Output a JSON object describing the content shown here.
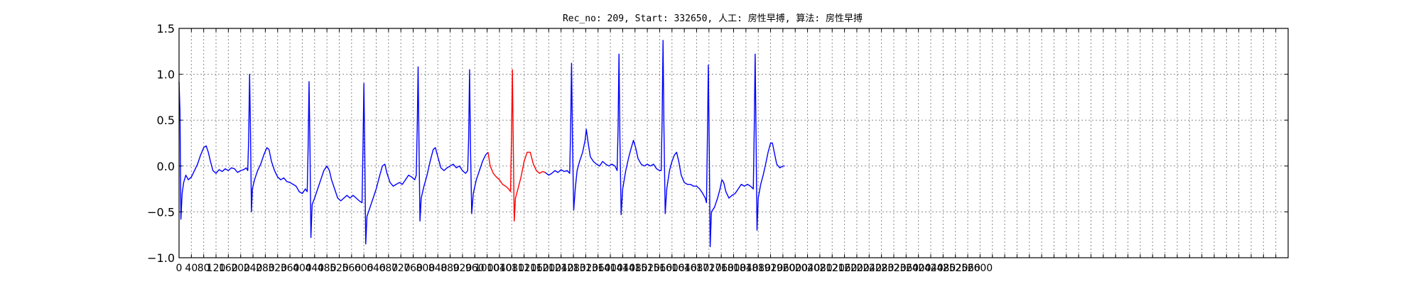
{
  "chart_data": {
    "type": "line",
    "title": "Rec_no: 209, Start: 332650, 人工: 房性早搏, 算法: 房性早搏",
    "xlabel": "",
    "ylabel": "",
    "xlim": [
      0,
      3600
    ],
    "ylim": [
      -1.0,
      1.5
    ],
    "grid": true,
    "y_ticks": [
      -1.0,
      -0.5,
      0.0,
      0.5,
      1.0,
      1.5
    ],
    "y_tick_labels": [
      "−1.0",
      "−0.5",
      "0.0",
      "0.5",
      "1.0",
      "1.5"
    ],
    "x_tick_step": 40,
    "x_ticks_labeled": [
      0,
      40,
      80,
      120,
      160,
      200,
      240,
      280,
      320,
      360,
      400,
      440,
      480,
      520,
      560,
      600,
      640,
      680,
      720,
      760,
      800,
      840,
      880,
      920,
      960,
      1000,
      1040,
      1080,
      1120,
      1160,
      1200,
      1240,
      1280,
      1320,
      1360,
      1400,
      1440,
      1480,
      1520,
      1560,
      1600,
      1640,
      1680,
      1720,
      1760,
      1800,
      1840,
      1880,
      1920,
      1960,
      2000,
      2040,
      2080,
      2120,
      2160,
      2200,
      2240,
      2280,
      2320,
      2360,
      2400,
      2440,
      2480,
      2520,
      2560,
      2600
    ],
    "series": [
      {
        "color": "#0000ff",
        "points": [
          [
            0,
            0.92
          ],
          [
            3,
            0.6
          ],
          [
            6,
            -0.58
          ],
          [
            10,
            -0.3
          ],
          [
            15,
            -0.18
          ],
          [
            22,
            -0.1
          ],
          [
            30,
            -0.15
          ],
          [
            40,
            -0.12
          ],
          [
            50,
            -0.05
          ],
          [
            60,
            0.02
          ],
          [
            70,
            0.12
          ],
          [
            80,
            0.2
          ],
          [
            88,
            0.22
          ],
          [
            95,
            0.15
          ],
          [
            102,
            0.05
          ],
          [
            110,
            -0.05
          ],
          [
            120,
            -0.08
          ],
          [
            130,
            -0.04
          ],
          [
            140,
            -0.06
          ],
          [
            150,
            -0.03
          ],
          [
            160,
            -0.05
          ],
          [
            170,
            -0.02
          ],
          [
            180,
            -0.03
          ],
          [
            190,
            -0.07
          ],
          [
            200,
            -0.05
          ],
          [
            210,
            -0.04
          ],
          [
            218,
            -0.02
          ],
          [
            223,
            -0.05
          ],
          [
            226,
            0.3
          ],
          [
            229,
            1.0
          ],
          [
            232,
            0.35
          ],
          [
            235,
            -0.5
          ],
          [
            238,
            -0.25
          ],
          [
            245,
            -0.15
          ],
          [
            255,
            -0.05
          ],
          [
            265,
            0.02
          ],
          [
            275,
            0.12
          ],
          [
            285,
            0.2
          ],
          [
            292,
            0.18
          ],
          [
            300,
            0.05
          ],
          [
            310,
            -0.05
          ],
          [
            320,
            -0.12
          ],
          [
            330,
            -0.15
          ],
          [
            340,
            -0.13
          ],
          [
            350,
            -0.17
          ],
          [
            360,
            -0.18
          ],
          [
            370,
            -0.2
          ],
          [
            380,
            -0.22
          ],
          [
            390,
            -0.28
          ],
          [
            400,
            -0.3
          ],
          [
            410,
            -0.25
          ],
          [
            416,
            -0.28
          ],
          [
            419,
            0.2
          ],
          [
            422,
            0.92
          ],
          [
            425,
            0.2
          ],
          [
            428,
            -0.78
          ],
          [
            432,
            -0.42
          ],
          [
            440,
            -0.35
          ],
          [
            450,
            -0.25
          ],
          [
            460,
            -0.15
          ],
          [
            470,
            -0.05
          ],
          [
            480,
            0.0
          ],
          [
            488,
            -0.05
          ],
          [
            495,
            -0.15
          ],
          [
            505,
            -0.25
          ],
          [
            515,
            -0.35
          ],
          [
            525,
            -0.38
          ],
          [
            535,
            -0.35
          ],
          [
            545,
            -0.32
          ],
          [
            555,
            -0.35
          ],
          [
            565,
            -0.32
          ],
          [
            575,
            -0.35
          ],
          [
            585,
            -0.38
          ],
          [
            594,
            -0.4
          ],
          [
            597,
            0.2
          ],
          [
            600,
            0.9
          ],
          [
            603,
            0.1
          ],
          [
            606,
            -0.85
          ],
          [
            610,
            -0.55
          ],
          [
            620,
            -0.45
          ],
          [
            630,
            -0.35
          ],
          [
            640,
            -0.25
          ],
          [
            650,
            -0.12
          ],
          [
            660,
            0.0
          ],
          [
            668,
            0.02
          ],
          [
            675,
            -0.08
          ],
          [
            685,
            -0.18
          ],
          [
            695,
            -0.22
          ],
          [
            705,
            -0.2
          ],
          [
            715,
            -0.18
          ],
          [
            725,
            -0.2
          ],
          [
            735,
            -0.15
          ],
          [
            745,
            -0.1
          ],
          [
            755,
            -0.12
          ],
          [
            765,
            -0.15
          ],
          [
            770,
            -0.1
          ],
          [
            773,
            0.4
          ],
          [
            776,
            1.08
          ],
          [
            779,
            0.2
          ],
          [
            782,
            -0.6
          ],
          [
            786,
            -0.35
          ],
          [
            795,
            -0.22
          ],
          [
            805,
            -0.1
          ],
          [
            815,
            0.05
          ],
          [
            825,
            0.18
          ],
          [
            832,
            0.2
          ],
          [
            840,
            0.1
          ],
          [
            850,
            -0.02
          ],
          [
            860,
            -0.05
          ],
          [
            870,
            -0.02
          ],
          [
            880,
            0.0
          ],
          [
            890,
            0.02
          ],
          [
            900,
            -0.02
          ],
          [
            910,
            0.0
          ],
          [
            920,
            -0.05
          ],
          [
            930,
            -0.08
          ],
          [
            937,
            -0.05
          ],
          [
            940,
            0.3
          ],
          [
            943,
            1.05
          ],
          [
            946,
            0.2
          ],
          [
            950,
            -0.52
          ],
          [
            955,
            -0.3
          ],
          [
            965,
            -0.15
          ],
          [
            975,
            -0.05
          ],
          [
            985,
            0.05
          ],
          [
            995,
            0.12
          ],
          [
            1003,
            0.15
          ]
        ]
      },
      {
        "color": "#ff0000",
        "points": [
          [
            1003,
            0.15
          ],
          [
            1010,
            0.0
          ],
          [
            1020,
            -0.08
          ],
          [
            1030,
            -0.12
          ],
          [
            1040,
            -0.15
          ],
          [
            1050,
            -0.2
          ],
          [
            1060,
            -0.22
          ],
          [
            1070,
            -0.25
          ],
          [
            1076,
            -0.28
          ],
          [
            1079,
            0.3
          ],
          [
            1082,
            1.05
          ],
          [
            1085,
            0.2
          ],
          [
            1088,
            -0.6
          ],
          [
            1092,
            -0.35
          ],
          [
            1100,
            -0.25
          ],
          [
            1110,
            -0.12
          ],
          [
            1120,
            0.05
          ],
          [
            1130,
            0.15
          ],
          [
            1140,
            0.15
          ],
          [
            1150,
            0.02
          ],
          [
            1160,
            -0.05
          ],
          [
            1170,
            -0.08
          ],
          [
            1180,
            -0.06
          ],
          [
            1188,
            -0.07
          ]
        ]
      },
      {
        "color": "#0000ff",
        "points": [
          [
            1188,
            -0.07
          ],
          [
            1200,
            -0.1
          ],
          [
            1210,
            -0.08
          ],
          [
            1220,
            -0.05
          ],
          [
            1230,
            -0.07
          ],
          [
            1240,
            -0.04
          ],
          [
            1250,
            -0.06
          ],
          [
            1260,
            -0.05
          ],
          [
            1268,
            -0.08
          ],
          [
            1271,
            0.4
          ],
          [
            1274,
            1.12
          ],
          [
            1277,
            0.3
          ],
          [
            1281,
            -0.48
          ],
          [
            1286,
            -0.25
          ],
          [
            1292,
            -0.05
          ],
          [
            1300,
            0.05
          ],
          [
            1310,
            0.15
          ],
          [
            1318,
            0.28
          ],
          [
            1322,
            0.4
          ],
          [
            1328,
            0.25
          ],
          [
            1335,
            0.1
          ],
          [
            1345,
            0.05
          ],
          [
            1355,
            0.02
          ],
          [
            1365,
            0.0
          ],
          [
            1375,
            0.05
          ],
          [
            1385,
            0.02
          ],
          [
            1395,
            0.0
          ],
          [
            1405,
            0.02
          ],
          [
            1415,
            0.0
          ],
          [
            1422,
            -0.05
          ],
          [
            1425,
            0.4
          ],
          [
            1428,
            1.22
          ],
          [
            1431,
            0.3
          ],
          [
            1435,
            -0.53
          ],
          [
            1440,
            -0.25
          ],
          [
            1450,
            -0.05
          ],
          [
            1460,
            0.1
          ],
          [
            1468,
            0.2
          ],
          [
            1475,
            0.28
          ],
          [
            1482,
            0.2
          ],
          [
            1490,
            0.08
          ],
          [
            1500,
            0.02
          ],
          [
            1510,
            0.0
          ],
          [
            1520,
            0.02
          ],
          [
            1530,
            0.0
          ],
          [
            1540,
            0.02
          ],
          [
            1550,
            -0.03
          ],
          [
            1560,
            -0.05
          ],
          [
            1565,
            -0.05
          ],
          [
            1568,
            0.5
          ],
          [
            1571,
            1.37
          ],
          [
            1574,
            0.4
          ],
          [
            1578,
            -0.52
          ],
          [
            1583,
            -0.25
          ],
          [
            1592,
            -0.05
          ],
          [
            1600,
            0.05
          ],
          [
            1608,
            0.12
          ],
          [
            1615,
            0.15
          ],
          [
            1622,
            0.05
          ],
          [
            1630,
            -0.1
          ],
          [
            1640,
            -0.18
          ],
          [
            1650,
            -0.2
          ],
          [
            1660,
            -0.2
          ],
          [
            1670,
            -0.22
          ],
          [
            1680,
            -0.22
          ],
          [
            1690,
            -0.25
          ],
          [
            1700,
            -0.3
          ],
          [
            1708,
            -0.35
          ],
          [
            1712,
            -0.4
          ],
          [
            1715,
            0.3
          ],
          [
            1718,
            1.1
          ],
          [
            1721,
            0.2
          ],
          [
            1724,
            -0.88
          ],
          [
            1728,
            -0.5
          ],
          [
            1738,
            -0.45
          ],
          [
            1748,
            -0.35
          ],
          [
            1756,
            -0.25
          ],
          [
            1762,
            -0.15
          ],
          [
            1768,
            -0.18
          ],
          [
            1775,
            -0.28
          ],
          [
            1785,
            -0.35
          ],
          [
            1795,
            -0.32
          ],
          [
            1805,
            -0.3
          ],
          [
            1815,
            -0.25
          ],
          [
            1825,
            -0.2
          ],
          [
            1835,
            -0.22
          ],
          [
            1845,
            -0.2
          ],
          [
            1855,
            -0.22
          ],
          [
            1864,
            -0.25
          ],
          [
            1867,
            0.4
          ],
          [
            1870,
            1.22
          ],
          [
            1873,
            0.3
          ],
          [
            1876,
            -0.7
          ],
          [
            1880,
            -0.35
          ],
          [
            1888,
            -0.2
          ],
          [
            1896,
            -0.1
          ],
          [
            1904,
            0.02
          ],
          [
            1912,
            0.15
          ],
          [
            1920,
            0.25
          ],
          [
            1926,
            0.25
          ],
          [
            1932,
            0.15
          ],
          [
            1940,
            0.02
          ],
          [
            1950,
            -0.02
          ],
          [
            1960,
            0.0
          ],
          [
            1966,
            0.0
          ]
        ]
      }
    ]
  }
}
